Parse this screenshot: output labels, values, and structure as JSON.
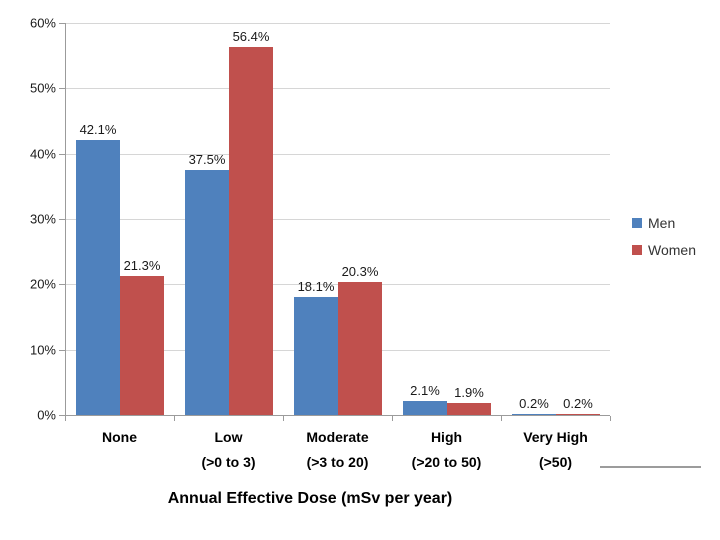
{
  "chart_data": {
    "type": "bar",
    "title": "",
    "xlabel": "Annual Effective Dose (mSv per year)",
    "ylabel": "",
    "categories": [
      {
        "label": "None",
        "sublabel": ""
      },
      {
        "label": "Low",
        "sublabel": "(>0 to 3)"
      },
      {
        "label": "Moderate",
        "sublabel": "(>3 to 20)"
      },
      {
        "label": "High",
        "sublabel": "(>20 to 50)"
      },
      {
        "label": "Very High",
        "sublabel": "(>50)"
      }
    ],
    "series": [
      {
        "name": "Men",
        "color": "#4f81bd",
        "values": [
          42.1,
          37.5,
          18.1,
          2.1,
          0.2
        ],
        "data_labels": [
          "42.1%",
          "37.5%",
          "18.1%",
          "2.1%",
          "0.2%"
        ]
      },
      {
        "name": "Women",
        "color": "#c0504d",
        "values": [
          21.3,
          56.4,
          20.3,
          1.9,
          0.2
        ],
        "data_labels": [
          "21.3%",
          "56.4%",
          "20.3%",
          "1.9%",
          "0.2%"
        ]
      }
    ],
    "y_axis": {
      "min": 0,
      "max": 60,
      "step": 10,
      "tick_labels": [
        "0%",
        "10%",
        "20%",
        "30%",
        "40%",
        "50%",
        "60%"
      ]
    },
    "legend": {
      "position": "right",
      "entries": [
        "Men",
        "Women"
      ]
    },
    "grid": true,
    "colors": {
      "gridline": "#d6d6d6",
      "axis": "#9b9b9b",
      "tick": "#9b9b9b",
      "data_label": "#1a1a1a",
      "tick_label": "#1a1a1a",
      "category_label": "#000000",
      "axis_title": "#000000",
      "legend_text": "#333333",
      "divider": "#9c9c9c",
      "background": "#ffffff"
    }
  }
}
